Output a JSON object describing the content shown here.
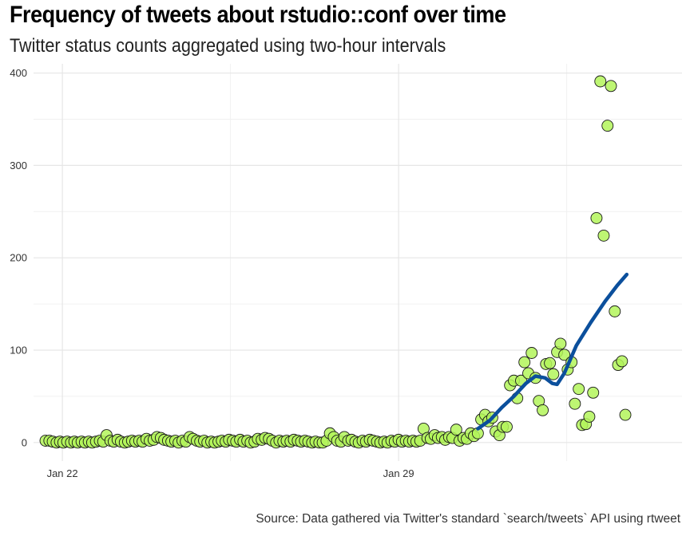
{
  "chart_data": {
    "type": "scatter",
    "title": "Frequency of tweets about rstudio::conf over time",
    "subtitle": "Twitter status counts aggregated using two-hour intervals",
    "caption": "Source: Data gathered via Twitter's standard `search/tweets` API using rtweet",
    "xlabel": "",
    "ylabel": "",
    "x_unit": "days",
    "x_ticks": [
      {
        "value": 0,
        "label": "Jan 22"
      },
      {
        "value": 7,
        "label": "Jan 29"
      }
    ],
    "xlim": [
      -0.6,
      12.9
    ],
    "ylim": [
      -20,
      410
    ],
    "y_ticks": [
      0,
      100,
      200,
      300,
      400
    ],
    "grid": true,
    "legend": "none",
    "point_fill": "#b3f55a",
    "point_stroke": "#1a1a1a",
    "line_color": "#0b4f9c",
    "points": [
      [
        -0.35,
        2
      ],
      [
        -0.27,
        2
      ],
      [
        -0.2,
        1
      ],
      [
        -0.12,
        0
      ],
      [
        -0.05,
        1
      ],
      [
        0.02,
        0
      ],
      [
        0.1,
        1
      ],
      [
        0.18,
        0
      ],
      [
        0.25,
        1
      ],
      [
        0.32,
        0
      ],
      [
        0.4,
        1
      ],
      [
        0.47,
        0
      ],
      [
        0.55,
        1
      ],
      [
        0.62,
        0
      ],
      [
        0.7,
        1
      ],
      [
        0.78,
        2
      ],
      [
        0.85,
        1
      ],
      [
        0.92,
        8
      ],
      [
        1.0,
        2
      ],
      [
        1.07,
        1
      ],
      [
        1.15,
        3
      ],
      [
        1.22,
        1
      ],
      [
        1.3,
        0
      ],
      [
        1.37,
        1
      ],
      [
        1.45,
        2
      ],
      [
        1.52,
        1
      ],
      [
        1.6,
        2
      ],
      [
        1.67,
        1
      ],
      [
        1.75,
        4
      ],
      [
        1.82,
        2
      ],
      [
        1.9,
        3
      ],
      [
        1.97,
        6
      ],
      [
        2.05,
        5
      ],
      [
        2.12,
        3
      ],
      [
        2.2,
        2
      ],
      [
        2.27,
        1
      ],
      [
        2.35,
        2
      ],
      [
        2.42,
        0
      ],
      [
        2.5,
        2
      ],
      [
        2.57,
        1
      ],
      [
        2.65,
        6
      ],
      [
        2.72,
        4
      ],
      [
        2.8,
        2
      ],
      [
        2.87,
        1
      ],
      [
        2.95,
        2
      ],
      [
        3.02,
        0
      ],
      [
        3.1,
        1
      ],
      [
        3.17,
        0
      ],
      [
        3.25,
        1
      ],
      [
        3.32,
        2
      ],
      [
        3.4,
        1
      ],
      [
        3.47,
        3
      ],
      [
        3.55,
        2
      ],
      [
        3.62,
        1
      ],
      [
        3.7,
        3
      ],
      [
        3.77,
        1
      ],
      [
        3.85,
        2
      ],
      [
        3.92,
        0
      ],
      [
        4.0,
        1
      ],
      [
        4.07,
        4
      ],
      [
        4.15,
        3
      ],
      [
        4.22,
        5
      ],
      [
        4.3,
        4
      ],
      [
        4.37,
        2
      ],
      [
        4.45,
        0
      ],
      [
        4.52,
        2
      ],
      [
        4.6,
        1
      ],
      [
        4.67,
        2
      ],
      [
        4.75,
        1
      ],
      [
        4.82,
        3
      ],
      [
        4.9,
        2
      ],
      [
        4.97,
        1
      ],
      [
        5.05,
        2
      ],
      [
        5.12,
        1
      ],
      [
        5.2,
        0
      ],
      [
        5.27,
        1
      ],
      [
        5.35,
        0
      ],
      [
        5.42,
        0
      ],
      [
        5.5,
        2
      ],
      [
        5.57,
        10
      ],
      [
        5.65,
        6
      ],
      [
        5.72,
        2
      ],
      [
        5.8,
        1
      ],
      [
        5.87,
        6
      ],
      [
        5.95,
        2
      ],
      [
        6.02,
        3
      ],
      [
        6.1,
        1
      ],
      [
        6.17,
        0
      ],
      [
        6.25,
        2
      ],
      [
        6.32,
        1
      ],
      [
        6.4,
        3
      ],
      [
        6.47,
        2
      ],
      [
        6.55,
        1
      ],
      [
        6.62,
        0
      ],
      [
        6.7,
        1
      ],
      [
        6.77,
        0
      ],
      [
        6.85,
        2
      ],
      [
        6.92,
        1
      ],
      [
        7.0,
        3
      ],
      [
        7.07,
        1
      ],
      [
        7.15,
        2
      ],
      [
        7.22,
        1
      ],
      [
        7.3,
        2
      ],
      [
        7.37,
        1
      ],
      [
        7.45,
        2
      ],
      [
        7.52,
        15
      ],
      [
        7.6,
        5
      ],
      [
        7.67,
        4
      ],
      [
        7.75,
        8
      ],
      [
        7.82,
        5
      ],
      [
        7.9,
        6
      ],
      [
        7.97,
        3
      ],
      [
        8.05,
        6
      ],
      [
        8.12,
        5
      ],
      [
        8.2,
        14
      ],
      [
        8.27,
        2
      ],
      [
        8.35,
        5
      ],
      [
        8.42,
        4
      ],
      [
        8.5,
        10
      ],
      [
        8.57,
        7
      ],
      [
        8.65,
        10
      ],
      [
        8.72,
        25
      ],
      [
        8.8,
        30
      ],
      [
        8.87,
        23
      ],
      [
        8.95,
        27
      ],
      [
        9.02,
        12
      ],
      [
        9.1,
        8
      ],
      [
        9.17,
        17
      ],
      [
        9.25,
        17
      ],
      [
        9.32,
        62
      ],
      [
        9.4,
        67
      ],
      [
        9.47,
        48
      ],
      [
        9.55,
        67
      ],
      [
        9.62,
        87
      ],
      [
        9.7,
        75
      ],
      [
        9.77,
        97
      ],
      [
        9.85,
        70
      ],
      [
        9.92,
        45
      ],
      [
        10.0,
        35
      ],
      [
        10.07,
        85
      ],
      [
        10.15,
        86
      ],
      [
        10.22,
        74
      ],
      [
        10.3,
        98
      ],
      [
        10.37,
        107
      ],
      [
        10.45,
        95
      ],
      [
        10.52,
        79
      ],
      [
        10.6,
        87
      ],
      [
        10.67,
        42
      ],
      [
        10.75,
        58
      ],
      [
        10.82,
        19
      ],
      [
        10.9,
        20
      ],
      [
        10.97,
        28
      ],
      [
        11.05,
        54
      ],
      [
        11.12,
        243
      ],
      [
        11.2,
        391
      ],
      [
        11.27,
        224
      ],
      [
        11.35,
        343
      ],
      [
        11.42,
        386
      ],
      [
        11.5,
        142
      ],
      [
        11.57,
        84
      ],
      [
        11.65,
        88
      ],
      [
        11.72,
        30
      ]
    ],
    "trend": [
      [
        8.65,
        15
      ],
      [
        8.9,
        24
      ],
      [
        9.15,
        38
      ],
      [
        9.4,
        50
      ],
      [
        9.65,
        64
      ],
      [
        9.85,
        72
      ],
      [
        10.05,
        70
      ],
      [
        10.2,
        64
      ],
      [
        10.3,
        63
      ],
      [
        10.45,
        75
      ],
      [
        10.7,
        105
      ],
      [
        11.0,
        130
      ],
      [
        11.3,
        153
      ],
      [
        11.55,
        170
      ],
      [
        11.75,
        182
      ]
    ]
  }
}
